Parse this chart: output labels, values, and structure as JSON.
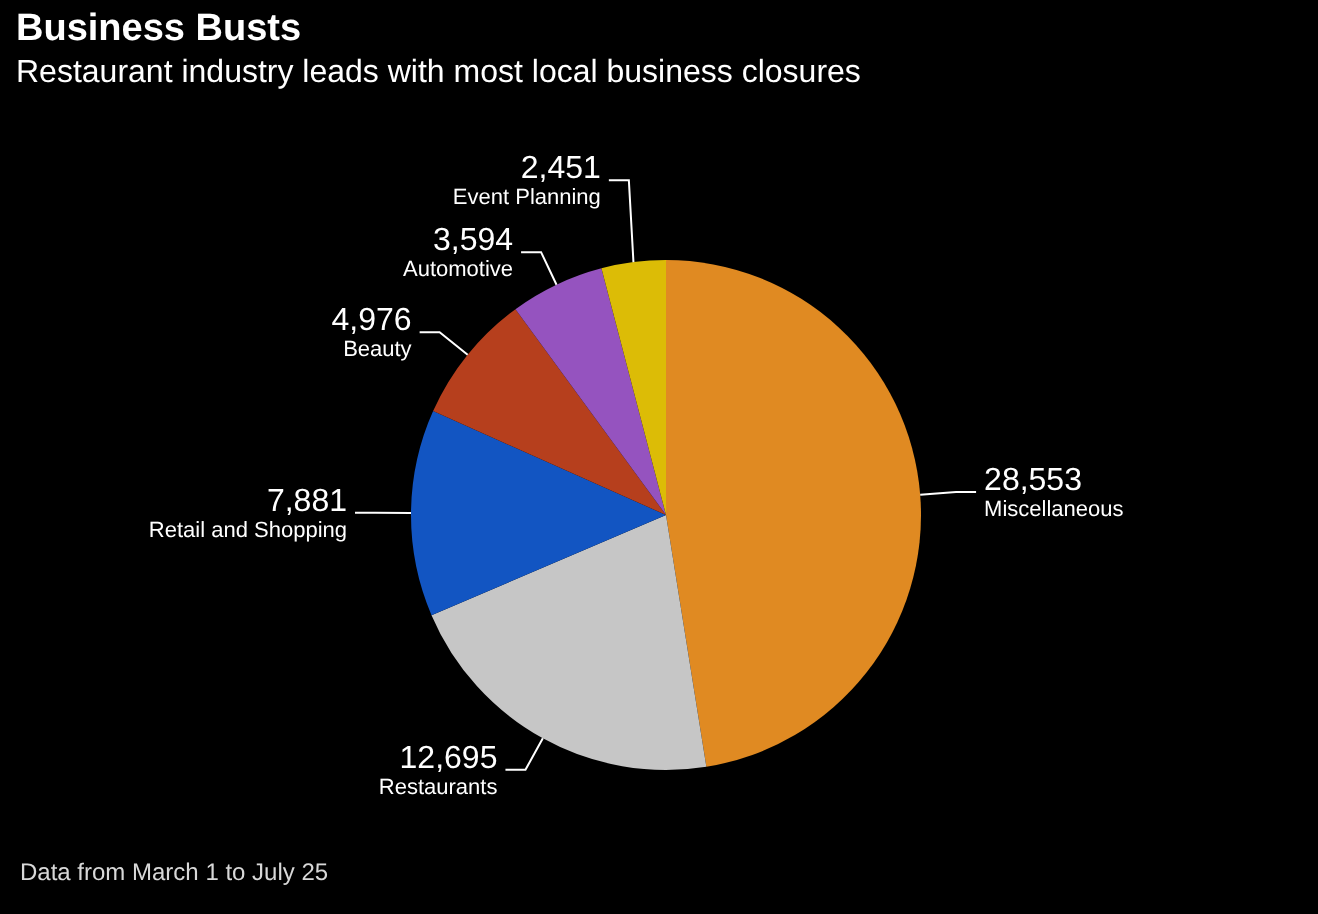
{
  "chart_data": {
    "type": "pie",
    "title": "Business Busts",
    "subtitle": "Restaurant industry leads with most local business closures",
    "categories": [
      "Miscellaneous",
      "Restaurants",
      "Retail and Shopping",
      "Beauty",
      "Automotive",
      "Event Planning"
    ],
    "values": [
      28553,
      12695,
      7881,
      4976,
      3594,
      2451
    ],
    "colors": [
      "#e08a22",
      "#c6c6c6",
      "#1255c2",
      "#b63f1d",
      "#9553bf",
      "#dcbc06"
    ],
    "value_labels": [
      "28,553",
      "12,695",
      "7,881",
      "4,976",
      "3,594",
      "2,451"
    ],
    "annotations": [
      "Data from March 1 to July 25"
    ]
  }
}
